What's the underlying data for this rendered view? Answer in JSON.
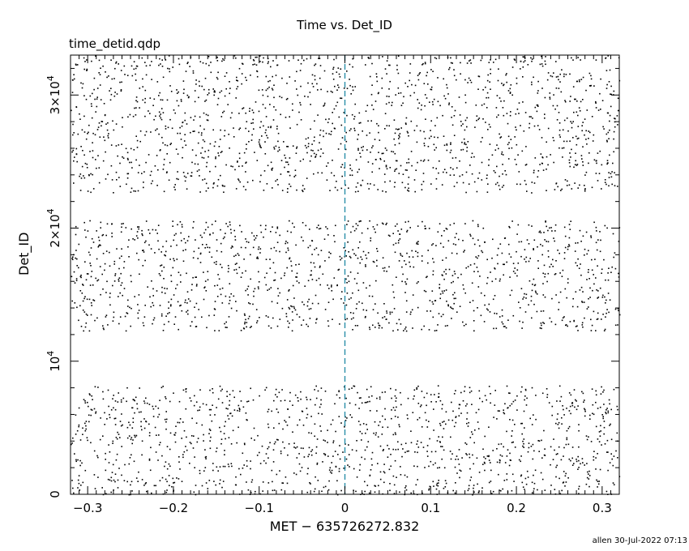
{
  "chart_data": {
    "type": "scatter",
    "title": "Time vs. Det_ID",
    "subtitle": "time_detid.qdp",
    "xlabel": "MET − 635726272.832",
    "ylabel": "Det_ID",
    "xlim": [
      -0.32,
      0.32
    ],
    "ylim": [
      0,
      33000
    ],
    "x_ticks": [
      -0.3,
      -0.2,
      -0.1,
      0,
      0.1,
      0.2,
      0.3
    ],
    "x_tick_labels": [
      "−0.3",
      "−0.2",
      "−0.1",
      "0",
      "0.1",
      "0.2",
      "0.3"
    ],
    "y_ticks": [
      0,
      10000,
      20000,
      30000
    ],
    "y_tick_labels": [
      {
        "base": "0",
        "exp": ""
      },
      {
        "base": "10",
        "exp": "4"
      },
      {
        "base": "2×10",
        "exp": "4"
      },
      {
        "base": "3×10",
        "exp": "4"
      }
    ],
    "reference_line": {
      "x": 0,
      "style": "dashed",
      "color": "#2a8fa8"
    },
    "point_color": "#000000",
    "density_bands": [
      {
        "ymin": 0,
        "ymax": 8200,
        "count": 1300
      },
      {
        "ymin": 12300,
        "ymax": 20600,
        "count": 1300
      },
      {
        "ymin": 22700,
        "ymax": 33000,
        "count": 1600
      }
    ]
  },
  "footer": "allen 30-Jul-2022 07:13"
}
